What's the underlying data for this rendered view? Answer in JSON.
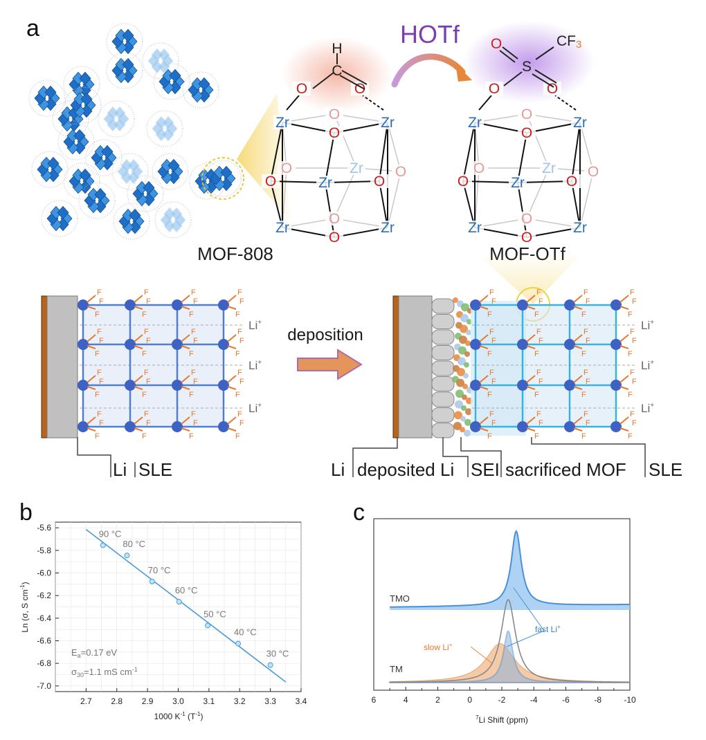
{
  "panel_a": {
    "letter": "a",
    "reagent": "HOTf",
    "mof808_label": "MOF-808",
    "mofotf_label": "MOF-OTf",
    "arrow_label": "deposition",
    "atoms": {
      "zr": "Zr",
      "o": "O",
      "c": "C",
      "h": "H",
      "s": "S",
      "cf3_c": "CF",
      "cf3_sub": "3",
      "f": "F"
    },
    "li_ion_label": "Li",
    "left_stack_labels": [
      "Li",
      "SLE"
    ],
    "right_stack_labels": [
      "Li",
      "deposited Li",
      "SEI",
      "sacrificed MOF",
      "SLE"
    ],
    "colors": {
      "zr": "#2b6fb8",
      "o": "#c8201e",
      "o_faded": "#e39a98",
      "zr_faded": "#9fc4e8",
      "fluorine": "#e8772e",
      "node": "#3d62c4",
      "grid": "#4e7ed4",
      "reagent": "#7a3fb0",
      "arrow": "#e69a5a"
    }
  },
  "panel_b": {
    "letter": "b",
    "ylabel": "Ln (σ, S cm",
    "ylabel_sup": "-1",
    "ylabel_end": ")",
    "xlabel": "1000 K",
    "xlabel_sup": "-1",
    "xlabel_end": " (T",
    "xlabel_sup2": "-1",
    "xlabel_close": ")",
    "ea_text": "E",
    "ea_sub": "a",
    "ea_val": "=0.17 eV",
    "sigma_text": "σ",
    "sigma_sub": "30",
    "sigma_val": "=1.1 mS cm",
    "sigma_sup": "-1"
  },
  "panel_c": {
    "letter": "c",
    "xlabel_sup": "7",
    "xlabel": "Li Shift (ppm)",
    "tmo_label": "TMO",
    "tm_label": "TM",
    "fast_label": "fast Li",
    "slow_label": "slow Li",
    "plus": "+"
  },
  "chart_data": [
    {
      "type": "scatter",
      "xlabel": "1000 K-1 (T-1)",
      "ylabel": "Ln (σ, S cm-1)",
      "xlim": [
        2.6,
        3.4
      ],
      "ylim": [
        -7.05,
        -5.55
      ],
      "xticks": [
        2.7,
        2.8,
        2.9,
        3.0,
        3.1,
        3.2,
        3.3,
        3.4
      ],
      "yticks": [
        -5.6,
        -5.8,
        -6.0,
        -6.2,
        -6.4,
        -6.6,
        -6.8,
        -7.0
      ],
      "points": [
        {
          "x": 2.755,
          "y": -5.755,
          "label": "90 °C"
        },
        {
          "x": 2.833,
          "y": -5.845,
          "label": "80 °C"
        },
        {
          "x": 2.915,
          "y": -6.075,
          "label": "70 °C"
        },
        {
          "x": 3.003,
          "y": -6.255,
          "label": "60 °C"
        },
        {
          "x": 3.096,
          "y": -6.465,
          "label": "50 °C"
        },
        {
          "x": 3.195,
          "y": -6.625,
          "label": "40 °C"
        },
        {
          "x": 3.3,
          "y": -6.815,
          "label": "30 °C"
        }
      ],
      "fit": {
        "x": [
          2.7,
          3.35
        ],
        "y": [
          -5.615,
          -6.965
        ]
      },
      "annotations": [
        "Ea=0.17 eV",
        "σ30=1.1 mS cm-1"
      ],
      "color": "#4a9ad8"
    },
    {
      "type": "line",
      "xlabel": "7Li Shift (ppm)",
      "xlim": [
        6,
        -10
      ],
      "xticks": [
        6,
        4,
        2,
        0,
        -2,
        -4,
        -6,
        -8,
        -10
      ],
      "series": [
        {
          "name": "TMO",
          "center": -2.9,
          "width": 0.38,
          "height": 1.0,
          "color": "#4a90d8",
          "fill": true
        },
        {
          "name": "TM",
          "center": -2.4,
          "width": 0.55,
          "height": 1.0,
          "color": "#888888",
          "fill": false
        },
        {
          "name": "fast Li+",
          "center": -2.4,
          "width": 0.35,
          "height": 0.62,
          "color": "#4a90d8",
          "fill": true
        },
        {
          "name": "slow Li+",
          "center": -1.9,
          "width": 1.1,
          "height": 0.47,
          "color": "#e8863a",
          "fill": true
        }
      ]
    }
  ]
}
